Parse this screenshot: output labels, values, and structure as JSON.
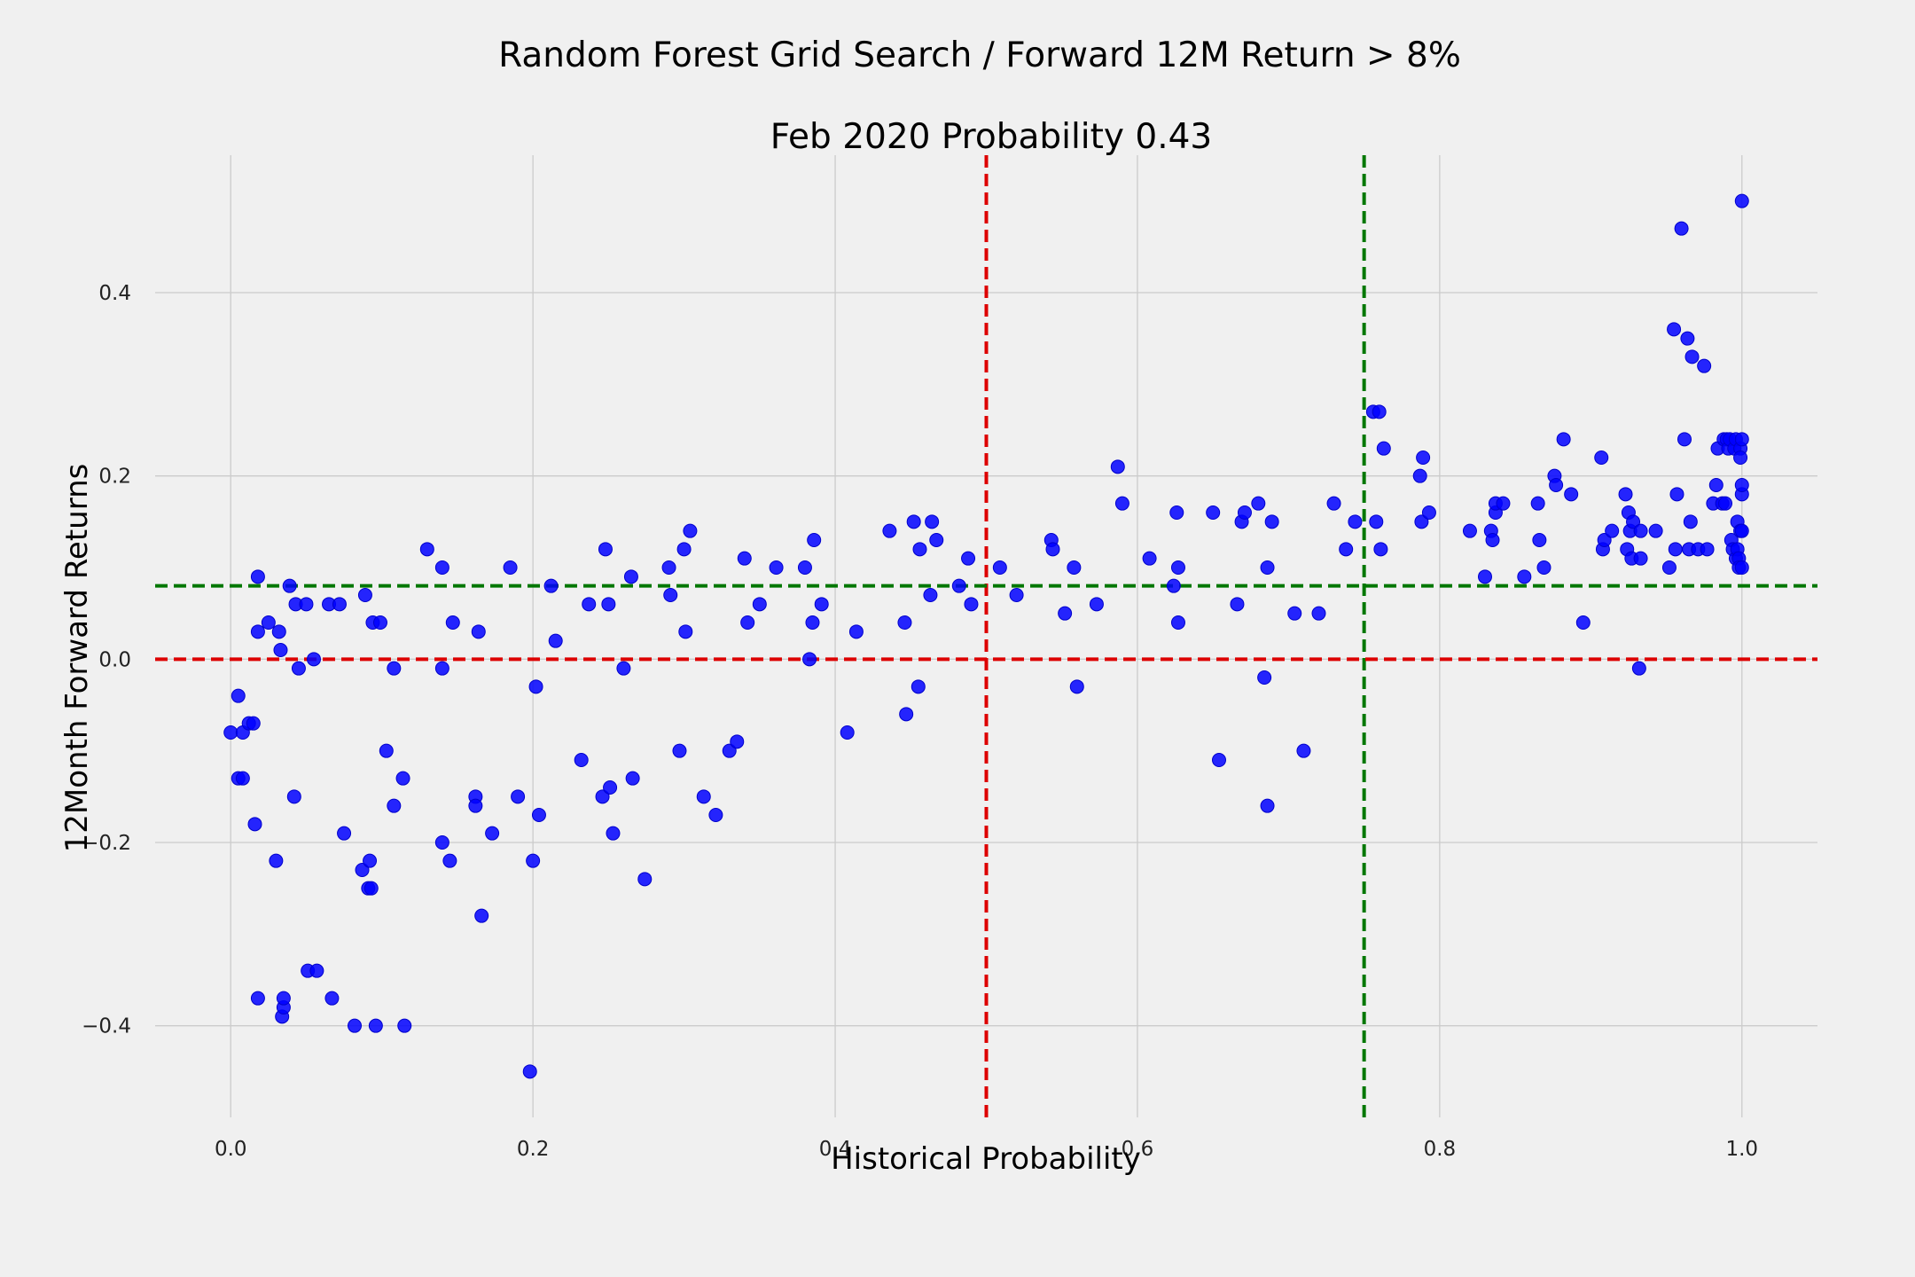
{
  "chart_data": {
    "type": "scatter",
    "title": "Random Forest Grid Search / Forward 12M Return > 8%",
    "subtitle": "Feb 2020 Probability 0.43",
    "xlabel": "Historical Probability",
    "ylabel": "12Month Forward Returns",
    "xlim": [
      -0.05,
      1.05
    ],
    "ylim": [
      -0.5,
      0.55
    ],
    "xticks": [
      0.0,
      0.2,
      0.4,
      0.6,
      0.8,
      1.0
    ],
    "xtick_labels": [
      "0.0",
      "0.2",
      "0.4",
      "0.6",
      "0.8",
      "1.0"
    ],
    "yticks": [
      -0.4,
      -0.2,
      0.0,
      0.2,
      0.4
    ],
    "ytick_labels": [
      "−0.4",
      "−0.2",
      "0.0",
      "0.2",
      "0.4"
    ],
    "grid": true,
    "point_color": "#0000ff",
    "reference_lines": [
      {
        "orientation": "vertical",
        "value": 0.5,
        "color": "#dd0000",
        "style": "dashed"
      },
      {
        "orientation": "vertical",
        "value": 0.75,
        "color": "#007700",
        "style": "dashed"
      },
      {
        "orientation": "horizontal",
        "value": 0.08,
        "color": "#007700",
        "style": "dashed"
      },
      {
        "orientation": "horizontal",
        "value": 0.0,
        "color": "#dd0000",
        "style": "dashed"
      }
    ],
    "points": [
      [
        0.0,
        -0.08
      ],
      [
        0.005,
        -0.04
      ],
      [
        0.005,
        -0.13
      ],
      [
        0.008,
        -0.13
      ],
      [
        0.008,
        -0.08
      ],
      [
        0.012,
        -0.07
      ],
      [
        0.015,
        -0.07
      ],
      [
        0.016,
        -0.18
      ],
      [
        0.018,
        0.09
      ],
      [
        0.018,
        0.03
      ],
      [
        0.018,
        -0.37
      ],
      [
        0.025,
        0.04
      ],
      [
        0.03,
        -0.22
      ],
      [
        0.032,
        0.03
      ],
      [
        0.033,
        0.01
      ],
      [
        0.034,
        -0.39
      ],
      [
        0.035,
        -0.38
      ],
      [
        0.035,
        -0.37
      ],
      [
        0.039,
        0.08
      ],
      [
        0.042,
        -0.15
      ],
      [
        0.043,
        0.06
      ],
      [
        0.045,
        -0.01
      ],
      [
        0.05,
        0.06
      ],
      [
        0.051,
        -0.34
      ],
      [
        0.055,
        0.0
      ],
      [
        0.057,
        -0.34
      ],
      [
        0.065,
        0.06
      ],
      [
        0.067,
        -0.37
      ],
      [
        0.072,
        0.06
      ],
      [
        0.075,
        -0.19
      ],
      [
        0.082,
        -0.4
      ],
      [
        0.087,
        -0.23
      ],
      [
        0.089,
        0.07
      ],
      [
        0.091,
        -0.25
      ],
      [
        0.092,
        -0.22
      ],
      [
        0.093,
        -0.25
      ],
      [
        0.094,
        0.04
      ],
      [
        0.096,
        -0.4
      ],
      [
        0.099,
        0.04
      ],
      [
        0.103,
        -0.1
      ],
      [
        0.108,
        -0.01
      ],
      [
        0.108,
        -0.16
      ],
      [
        0.114,
        -0.13
      ],
      [
        0.115,
        -0.4
      ],
      [
        0.13,
        0.12
      ],
      [
        0.14,
        0.1
      ],
      [
        0.14,
        -0.01
      ],
      [
        0.14,
        -0.2
      ],
      [
        0.145,
        -0.22
      ],
      [
        0.147,
        0.04
      ],
      [
        0.162,
        -0.15
      ],
      [
        0.162,
        -0.16
      ],
      [
        0.164,
        0.03
      ],
      [
        0.166,
        -0.28
      ],
      [
        0.173,
        -0.19
      ],
      [
        0.185,
        0.1
      ],
      [
        0.19,
        -0.15
      ],
      [
        0.198,
        -0.45
      ],
      [
        0.2,
        -0.22
      ],
      [
        0.202,
        -0.03
      ],
      [
        0.204,
        -0.17
      ],
      [
        0.212,
        0.08
      ],
      [
        0.215,
        0.02
      ],
      [
        0.232,
        -0.11
      ],
      [
        0.237,
        0.06
      ],
      [
        0.246,
        -0.15
      ],
      [
        0.248,
        0.12
      ],
      [
        0.25,
        0.06
      ],
      [
        0.251,
        -0.14
      ],
      [
        0.253,
        -0.19
      ],
      [
        0.26,
        -0.01
      ],
      [
        0.265,
        0.09
      ],
      [
        0.266,
        -0.13
      ],
      [
        0.274,
        -0.24
      ],
      [
        0.29,
        0.1
      ],
      [
        0.291,
        0.07
      ],
      [
        0.297,
        -0.1
      ],
      [
        0.3,
        0.12
      ],
      [
        0.301,
        0.03
      ],
      [
        0.304,
        0.14
      ],
      [
        0.313,
        -0.15
      ],
      [
        0.321,
        -0.17
      ],
      [
        0.33,
        -0.1
      ],
      [
        0.335,
        -0.09
      ],
      [
        0.34,
        0.11
      ],
      [
        0.342,
        0.04
      ],
      [
        0.35,
        0.06
      ],
      [
        0.361,
        0.1
      ],
      [
        0.38,
        0.1
      ],
      [
        0.383,
        0.0
      ],
      [
        0.385,
        0.04
      ],
      [
        0.386,
        0.13
      ],
      [
        0.391,
        0.06
      ],
      [
        0.408,
        -0.08
      ],
      [
        0.414,
        0.03
      ],
      [
        0.436,
        0.14
      ],
      [
        0.446,
        0.04
      ],
      [
        0.447,
        -0.06
      ],
      [
        0.452,
        0.15
      ],
      [
        0.455,
        -0.03
      ],
      [
        0.456,
        0.12
      ],
      [
        0.463,
        0.07
      ],
      [
        0.464,
        0.15
      ],
      [
        0.467,
        0.13
      ],
      [
        0.482,
        0.08
      ],
      [
        0.488,
        0.11
      ],
      [
        0.49,
        0.06
      ],
      [
        0.509,
        0.1
      ],
      [
        0.52,
        0.07
      ],
      [
        0.543,
        0.13
      ],
      [
        0.544,
        0.12
      ],
      [
        0.552,
        0.05
      ],
      [
        0.558,
        0.1
      ],
      [
        0.56,
        -0.03
      ],
      [
        0.573,
        0.06
      ],
      [
        0.587,
        0.21
      ],
      [
        0.59,
        0.17
      ],
      [
        0.608,
        0.11
      ],
      [
        0.624,
        0.08
      ],
      [
        0.626,
        0.16
      ],
      [
        0.627,
        0.1
      ],
      [
        0.627,
        0.04
      ],
      [
        0.65,
        0.16
      ],
      [
        0.654,
        -0.11
      ],
      [
        0.666,
        0.06
      ],
      [
        0.669,
        0.15
      ],
      [
        0.671,
        0.16
      ],
      [
        0.68,
        0.17
      ],
      [
        0.684,
        -0.02
      ],
      [
        0.686,
        0.1
      ],
      [
        0.686,
        -0.16
      ],
      [
        0.689,
        0.15
      ],
      [
        0.704,
        0.05
      ],
      [
        0.71,
        -0.1
      ],
      [
        0.72,
        0.05
      ],
      [
        0.73,
        0.17
      ],
      [
        0.738,
        0.12
      ],
      [
        0.744,
        0.15
      ],
      [
        0.756,
        0.27
      ],
      [
        0.758,
        0.15
      ],
      [
        0.76,
        0.27
      ],
      [
        0.761,
        0.12
      ],
      [
        0.763,
        0.23
      ],
      [
        0.787,
        0.2
      ],
      [
        0.788,
        0.15
      ],
      [
        0.789,
        0.22
      ],
      [
        0.793,
        0.16
      ],
      [
        0.82,
        0.14
      ],
      [
        0.83,
        0.09
      ],
      [
        0.834,
        0.14
      ],
      [
        0.835,
        0.13
      ],
      [
        0.837,
        0.16
      ],
      [
        0.837,
        0.17
      ],
      [
        0.842,
        0.17
      ],
      [
        0.856,
        0.09
      ],
      [
        0.865,
        0.17
      ],
      [
        0.866,
        0.13
      ],
      [
        0.869,
        0.1
      ],
      [
        0.876,
        0.2
      ],
      [
        0.877,
        0.19
      ],
      [
        0.882,
        0.24
      ],
      [
        0.887,
        0.18
      ],
      [
        0.895,
        0.04
      ],
      [
        0.907,
        0.22
      ],
      [
        0.908,
        0.12
      ],
      [
        0.909,
        0.13
      ],
      [
        0.914,
        0.14
      ],
      [
        0.923,
        0.18
      ],
      [
        0.924,
        0.12
      ],
      [
        0.925,
        0.16
      ],
      [
        0.926,
        0.14
      ],
      [
        0.927,
        0.11
      ],
      [
        0.928,
        0.15
      ],
      [
        0.932,
        -0.01
      ],
      [
        0.933,
        0.14
      ],
      [
        0.933,
        0.11
      ],
      [
        0.943,
        0.14
      ],
      [
        0.952,
        0.1
      ],
      [
        0.955,
        0.36
      ],
      [
        0.956,
        0.12
      ],
      [
        0.957,
        0.18
      ],
      [
        0.96,
        0.47
      ],
      [
        0.962,
        0.24
      ],
      [
        0.964,
        0.35
      ],
      [
        0.965,
        0.12
      ],
      [
        0.966,
        0.15
      ],
      [
        0.967,
        0.33
      ],
      [
        0.971,
        0.12
      ],
      [
        0.975,
        0.32
      ],
      [
        0.977,
        0.12
      ],
      [
        0.981,
        0.17
      ],
      [
        0.983,
        0.19
      ],
      [
        0.984,
        0.23
      ],
      [
        0.987,
        0.17
      ],
      [
        0.988,
        0.24
      ],
      [
        0.989,
        0.17
      ],
      [
        0.99,
        0.24
      ],
      [
        0.991,
        0.23
      ],
      [
        0.992,
        0.24
      ],
      [
        0.993,
        0.13
      ],
      [
        0.994,
        0.12
      ],
      [
        0.995,
        0.23
      ],
      [
        0.996,
        0.11
      ],
      [
        0.996,
        0.24
      ],
      [
        0.997,
        0.12
      ],
      [
        0.997,
        0.15
      ],
      [
        0.998,
        0.11
      ],
      [
        0.998,
        0.1
      ],
      [
        0.999,
        0.23
      ],
      [
        0.999,
        0.14
      ],
      [
        0.999,
        0.22
      ],
      [
        1.0,
        0.5
      ],
      [
        1.0,
        0.24
      ],
      [
        1.0,
        0.18
      ],
      [
        1.0,
        0.19
      ],
      [
        1.0,
        0.14
      ],
      [
        1.0,
        0.1
      ]
    ]
  }
}
